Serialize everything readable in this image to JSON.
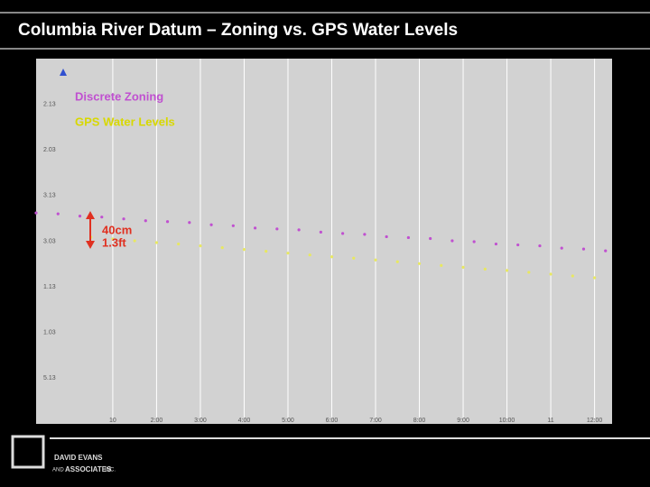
{
  "slide_title": "Columbia River Datum – Zoning vs. GPS Water Levels",
  "logo": {
    "line1": "DAVID EVANS",
    "line2": "AND",
    "line3": "ASSOCIATES",
    "line4": "INC."
  },
  "chart_data": {
    "type": "scatter",
    "annotations": {
      "legend_zoning": "Discrete Zoning",
      "legend_gps": "GPS Water Levels",
      "gap_cm": "40cm",
      "gap_ft": "1.3ft"
    },
    "xlim": [
      -0.75,
      12.4
    ],
    "ylim": [
      0,
      8
    ],
    "xticks": [
      {
        "value": 1,
        "label": "10"
      },
      {
        "value": 2,
        "label": "2:00"
      },
      {
        "value": 3,
        "label": "3:00"
      },
      {
        "value": 4,
        "label": "4:00"
      },
      {
        "value": 5,
        "label": "5:00"
      },
      {
        "value": 6,
        "label": "6:00"
      },
      {
        "value": 7,
        "label": "7:00"
      },
      {
        "value": 8,
        "label": "8:00"
      },
      {
        "value": 9,
        "label": "9:00"
      },
      {
        "value": 10,
        "label": "10:00"
      },
      {
        "value": 11,
        "label": "11"
      },
      {
        "value": 12,
        "label": "12:00"
      }
    ],
    "yticks": [
      {
        "value": 7,
        "label": "2.13"
      },
      {
        "value": 6,
        "label": "2.03"
      },
      {
        "value": 5,
        "label": "3.13"
      },
      {
        "value": 4,
        "label": "3.03"
      },
      {
        "value": 3,
        "label": "1.13"
      },
      {
        "value": 2,
        "label": "1.03"
      },
      {
        "value": 1,
        "label": "5.13"
      }
    ],
    "grid": true,
    "series": [
      {
        "name": "Discrete Zoning",
        "color": "#c050d0",
        "x": [
          -0.75,
          -0.25,
          0.25,
          0.75,
          1.25,
          1.75,
          2.25,
          2.75,
          3.25,
          3.75,
          4.25,
          4.75,
          5.25,
          5.75,
          6.25,
          6.75,
          7.25,
          7.75,
          8.25,
          8.75,
          9.25,
          9.75,
          10.25,
          10.75,
          11.25,
          11.75,
          12.25
        ],
        "values": [
          4.62,
          4.6,
          4.55,
          4.53,
          4.49,
          4.45,
          4.43,
          4.41,
          4.36,
          4.34,
          4.29,
          4.27,
          4.25,
          4.2,
          4.17,
          4.15,
          4.1,
          4.08,
          4.06,
          4.01,
          3.99,
          3.94,
          3.92,
          3.9,
          3.85,
          3.83,
          3.79
        ]
      },
      {
        "name": "GPS Water Levels",
        "color": "#e8e860",
        "x": [
          0.5,
          1,
          1.5,
          2,
          2.5,
          3,
          3.5,
          4,
          4.5,
          5,
          5.5,
          6,
          6.5,
          7,
          7.5,
          8,
          8.5,
          9,
          9.5,
          10,
          10.5,
          11,
          11.5,
          12
        ],
        "values": [
          4.09,
          4.05,
          4.01,
          3.97,
          3.94,
          3.9,
          3.86,
          3.82,
          3.78,
          3.74,
          3.7,
          3.66,
          3.63,
          3.59,
          3.55,
          3.51,
          3.47,
          3.43,
          3.39,
          3.36,
          3.32,
          3.28,
          3.24,
          3.2
        ]
      }
    ]
  }
}
